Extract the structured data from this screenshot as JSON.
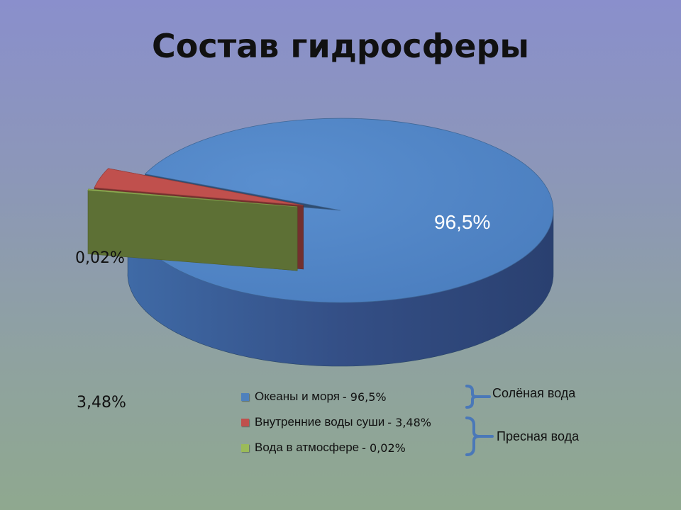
{
  "title": "Состав гидросферы",
  "chart_data": {
    "type": "pie",
    "title": "Состав гидросферы",
    "slices": [
      {
        "name": "Океаны и моря",
        "value": 96.5,
        "label": "96,5%",
        "legend_value": "- 96,5%",
        "color": "#4f81bd"
      },
      {
        "name": "Внутренние воды суши",
        "value": 3.48,
        "label": "3,48%",
        "legend_value": "- 3,48%",
        "color": "#c0504d"
      },
      {
        "name": "Вода в атмосфере",
        "value": 0.02,
        "label": "0,02%",
        "legend_value": "- 0,02%",
        "color": "#9bbb59"
      }
    ],
    "groups": [
      {
        "label": "Солёная вода",
        "members": [
          "Океаны и моря"
        ]
      },
      {
        "label": "Пресная вода",
        "members": [
          "Внутренние воды суши",
          "Вода в атмосфере"
        ]
      }
    ],
    "legend_position": "bottom-center",
    "style": "3d-exploded"
  }
}
